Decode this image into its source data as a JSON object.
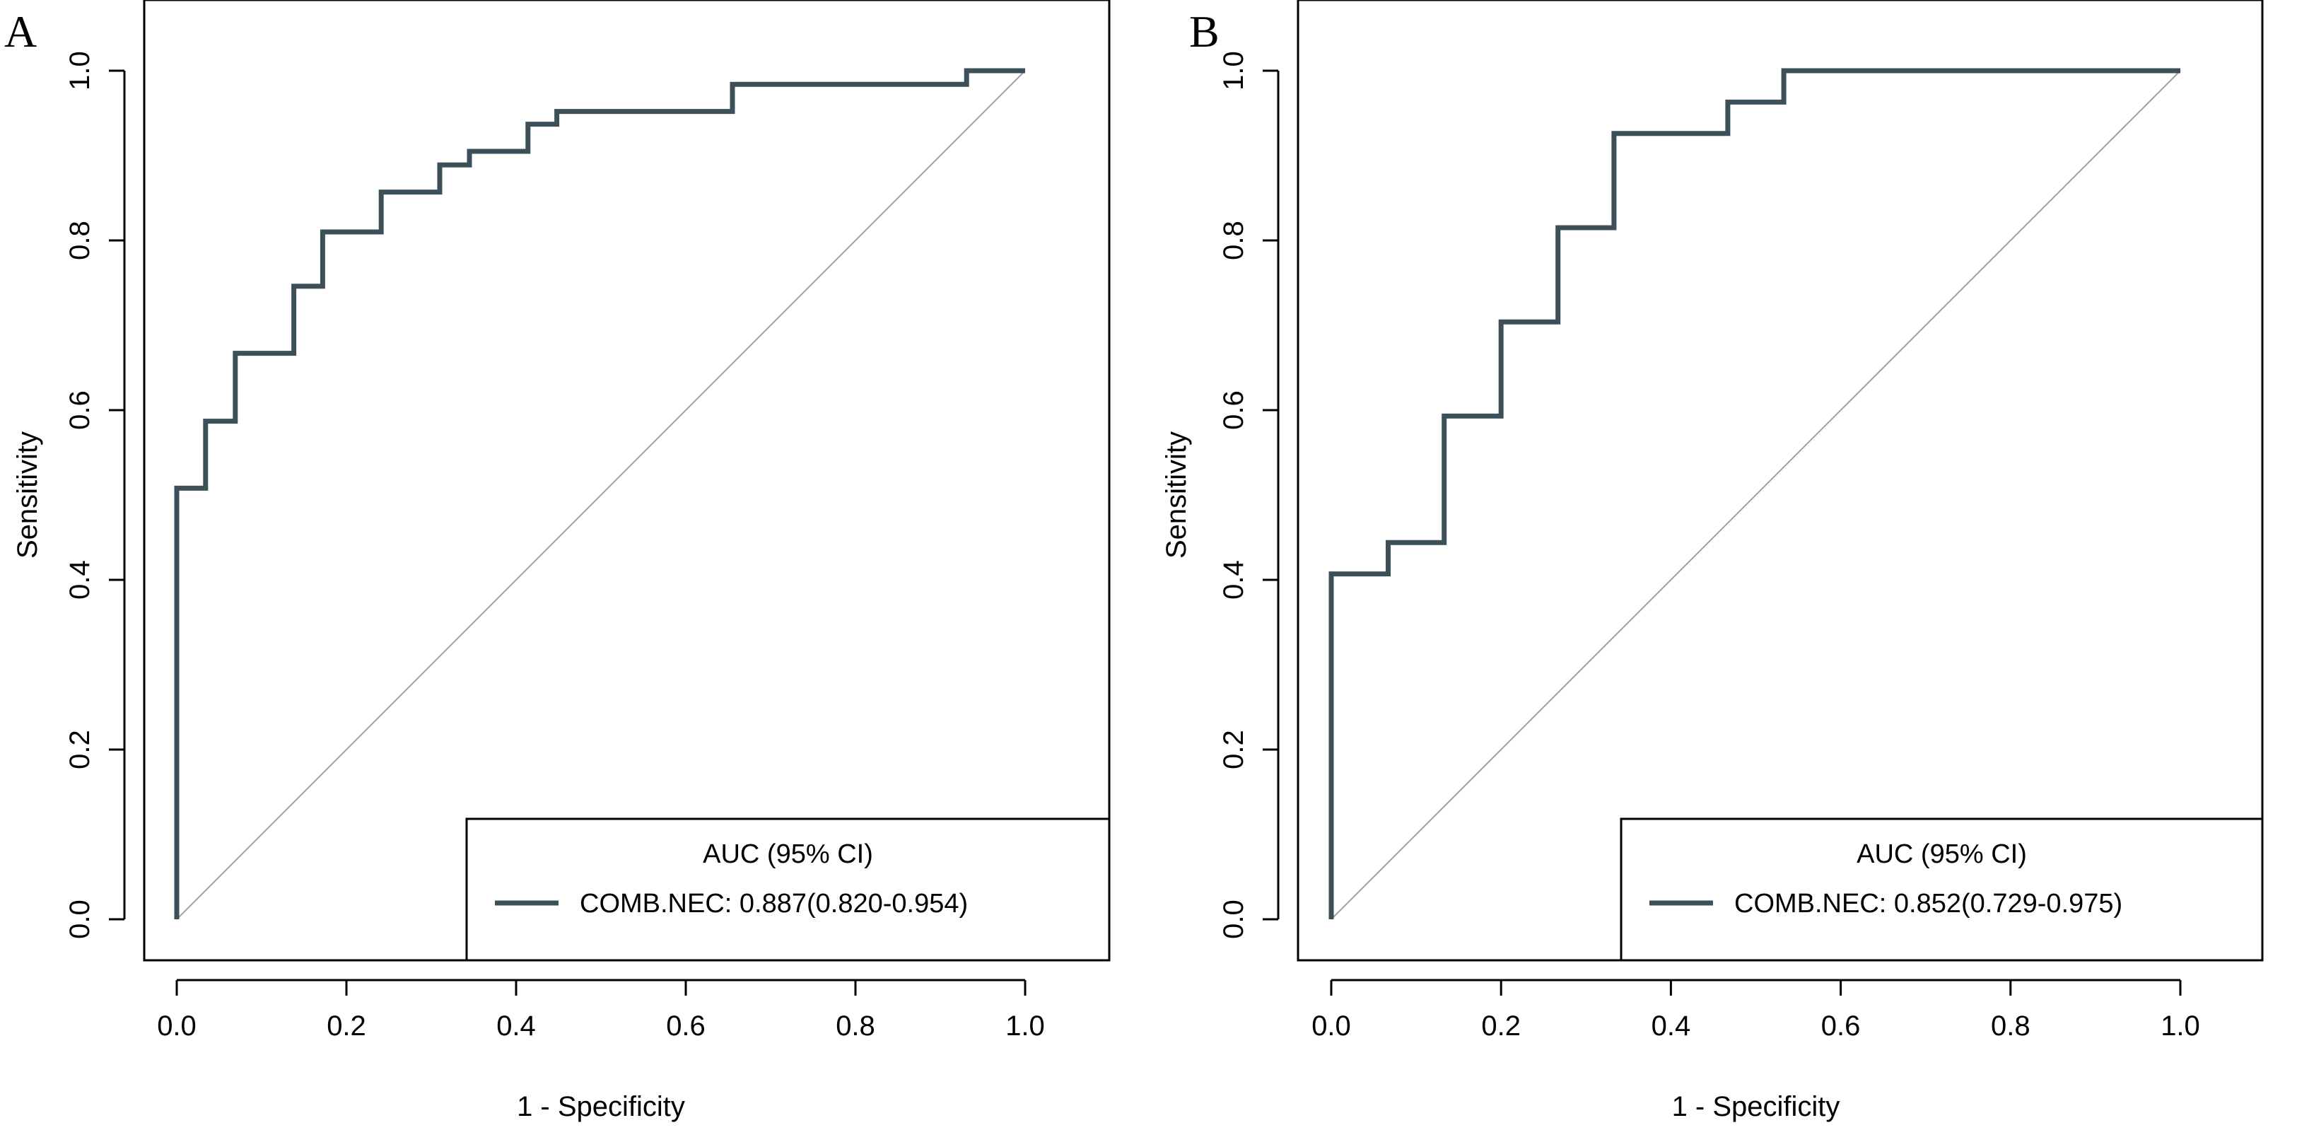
{
  "chart_data": [
    {
      "type": "line",
      "panel_label": "A",
      "xlabel": "1 - Specificity",
      "ylabel": "Sensitivity",
      "xlim": [
        0,
        1
      ],
      "ylim": [
        0,
        1
      ],
      "xticks": [
        "0.0",
        "0.2",
        "0.4",
        "0.6",
        "0.8",
        "1.0"
      ],
      "yticks": [
        "0.0",
        "0.2",
        "0.4",
        "0.6",
        "0.8",
        "1.0"
      ],
      "series": [
        {
          "name": "COMB.NEC",
          "color": "#3d4f58",
          "step": true,
          "x": [
            0,
            0,
            0.034,
            0.034,
            0.069,
            0.069,
            0.138,
            0.138,
            0.172,
            0.172,
            0.241,
            0.241,
            0.31,
            0.31,
            0.345,
            0.345,
            0.414,
            0.414,
            0.448,
            0.448,
            0.655,
            0.655,
            0.931,
            0.931,
            1.0
          ],
          "y": [
            0,
            0.508,
            0.508,
            0.587,
            0.587,
            0.667,
            0.667,
            0.746,
            0.746,
            0.81,
            0.81,
            0.857,
            0.857,
            0.889,
            0.889,
            0.905,
            0.905,
            0.937,
            0.937,
            0.952,
            0.952,
            0.984,
            0.984,
            1.0,
            1.0
          ]
        }
      ],
      "reference_line": {
        "x": [
          0,
          1
        ],
        "y": [
          0,
          1
        ],
        "color": "#a0a0a0"
      },
      "legend": {
        "title": "AUC (95% CI)",
        "entries": [
          {
            "label": "COMB.NEC: 0.887(0.820-0.954)",
            "color": "#3d4f58"
          }
        ],
        "position": "bottom-right"
      }
    },
    {
      "type": "line",
      "panel_label": "B",
      "xlabel": "1 - Specificity",
      "ylabel": "Sensitivity",
      "xlim": [
        0,
        1
      ],
      "ylim": [
        0,
        1
      ],
      "xticks": [
        "0.0",
        "0.2",
        "0.4",
        "0.6",
        "0.8",
        "1.0"
      ],
      "yticks": [
        "0.0",
        "0.2",
        "0.4",
        "0.6",
        "0.8",
        "1.0"
      ],
      "series": [
        {
          "name": "COMB.NEC",
          "color": "#3d4f58",
          "step": true,
          "x": [
            0,
            0,
            0.067,
            0.067,
            0.133,
            0.133,
            0.2,
            0.2,
            0.267,
            0.267,
            0.333,
            0.333,
            0.467,
            0.467,
            0.533,
            0.533,
            1.0
          ],
          "y": [
            0,
            0.407,
            0.407,
            0.444,
            0.444,
            0.593,
            0.593,
            0.704,
            0.704,
            0.815,
            0.815,
            0.926,
            0.926,
            0.963,
            0.963,
            1.0,
            1.0
          ]
        }
      ],
      "reference_line": {
        "x": [
          0,
          1
        ],
        "y": [
          0,
          1
        ],
        "color": "#a0a0a0"
      },
      "legend": {
        "title": "AUC (95% CI)",
        "entries": [
          {
            "label": "COMB.NEC: 0.852(0.729-0.975)",
            "color": "#3d4f58"
          }
        ],
        "position": "bottom-right"
      }
    }
  ]
}
